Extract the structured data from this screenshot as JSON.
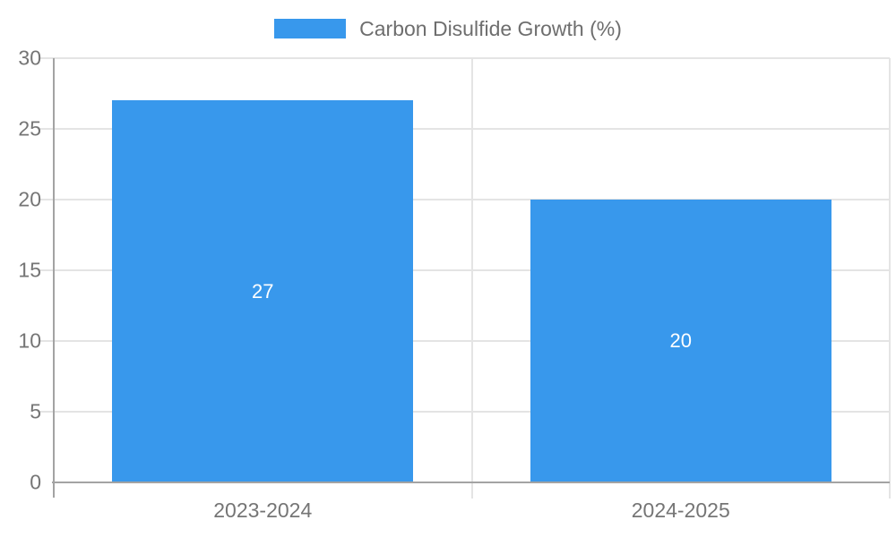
{
  "legend": {
    "label": "Carbon Disulfide Growth (%)"
  },
  "chart_data": {
    "type": "bar",
    "title": "Carbon Disulfide Growth (%)",
    "categories": [
      "2023-2024",
      "2024-2025"
    ],
    "values": [
      27,
      20
    ],
    "xlabel": "",
    "ylabel": "",
    "ylim": [
      0,
      30
    ],
    "yticks": [
      0,
      5,
      10,
      15,
      20,
      25,
      30
    ],
    "grid": true,
    "legend_position": "top",
    "bar_color": "#3898EC",
    "grid_color": "#E4E4E4",
    "axis_color": "#A3A3A3",
    "tick_label_color": "#757575",
    "value_label_color": "#FFFFFF"
  }
}
